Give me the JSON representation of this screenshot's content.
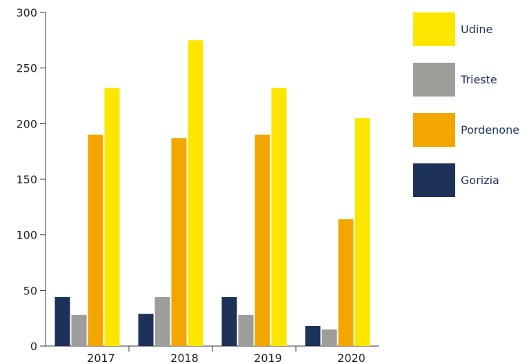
{
  "chart_data": {
    "type": "bar",
    "categories": [
      "2017",
      "2018",
      "2019",
      "2020"
    ],
    "series": [
      {
        "name": "Gorizia",
        "color": "#1e3158",
        "values": [
          44,
          29,
          44,
          18
        ]
      },
      {
        "name": "Trieste",
        "color": "#9d9d9a",
        "values": [
          28,
          44,
          28,
          15
        ]
      },
      {
        "name": "Pordenone",
        "color": "#f3a500",
        "values": [
          190,
          187,
          190,
          114
        ]
      },
      {
        "name": "Udine",
        "color": "#fce600",
        "values": [
          232,
          275,
          232,
          205
        ]
      }
    ],
    "ylim": [
      0,
      300
    ],
    "yticks": [
      "0",
      "50",
      "100",
      "150",
      "200",
      "250",
      "300"
    ],
    "legend_order": [
      "Udine",
      "Trieste",
      "Pordenone",
      "Gorizia"
    ],
    "legend_position": "right",
    "grid": false
  }
}
